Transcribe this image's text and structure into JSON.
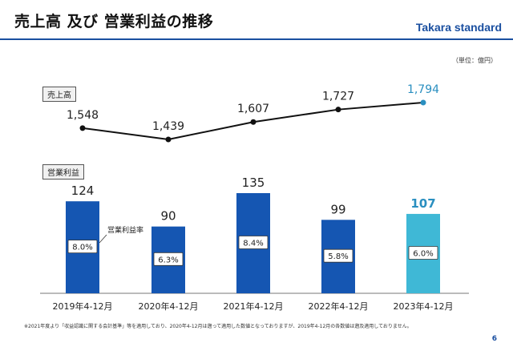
{
  "header": {
    "title": "売上高 及び 営業利益の推移",
    "brand": "Takara standard",
    "unit": "（単位：億円）"
  },
  "labels": {
    "sales": "売上高",
    "operating_profit": "営業利益",
    "margin_callout": "営業利益率"
  },
  "footnote": "※2021年度より「収益認識に関する会計基準」等を適用しており、2020年4-12月は遡って適用した数値となっておりますが、2019年4-12月の各数値は遡及適用しておりません。",
  "page_number": "6",
  "colors": {
    "accent": "#1a4fa0",
    "bar": "#1556b2",
    "bar_highlight": "#3fb8d6",
    "highlight_text": "#2a8fc0",
    "line": "#111111"
  },
  "chart_data": [
    {
      "type": "line",
      "title": "売上高",
      "categories": [
        "2019年4-12月",
        "2020年4-12月",
        "2021年4-12月",
        "2022年4-12月",
        "2023年4-12月"
      ],
      "series": [
        {
          "name": "売上高",
          "values": [
            1548,
            1439,
            1607,
            1727,
            1794
          ],
          "display": [
            "1,548",
            "1,439",
            "1,607",
            "1,727",
            "1,794"
          ]
        }
      ],
      "highlight_index": 4
    },
    {
      "type": "bar",
      "title": "営業利益",
      "categories": [
        "2019年4-12月",
        "2020年4-12月",
        "2021年4-12月",
        "2022年4-12月",
        "2023年4-12月"
      ],
      "series": [
        {
          "name": "営業利益",
          "values": [
            124,
            90,
            135,
            99,
            107
          ]
        }
      ],
      "margins": [
        "8.0%",
        "6.3%",
        "8.4%",
        "5.8%",
        "6.0%"
      ],
      "highlight_index": 4
    }
  ]
}
